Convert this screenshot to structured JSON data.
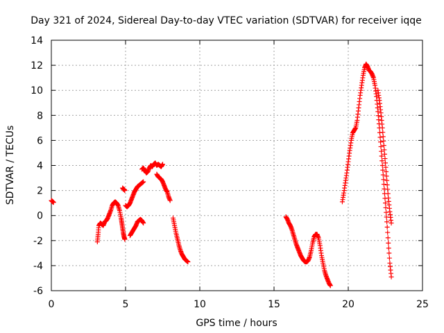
{
  "chart_data": {
    "type": "scatter",
    "title": "Day 321 of 2024, Sidereal Day-to-day VTEC variation (SDTVAR) for receiver iqqe",
    "xlabel": "GPS time / hours",
    "ylabel": "SDTVAR / TECUs",
    "xlim": [
      0,
      25
    ],
    "ylim": [
      -6,
      14
    ],
    "xticks": [
      0,
      5,
      10,
      15,
      20,
      25
    ],
    "yticks": [
      -6,
      -4,
      -2,
      0,
      2,
      4,
      6,
      8,
      10,
      12,
      14
    ],
    "xtick_labels": [
      "0",
      "5",
      "10",
      "15",
      "20",
      "25"
    ],
    "ytick_labels": [
      "-6",
      "-4",
      "-2",
      "0",
      "2",
      "4",
      "6",
      "8",
      "10",
      "12",
      "14"
    ],
    "grid": true,
    "marker": "+",
    "color": "#ff0000",
    "series": [
      {
        "name": "seg1",
        "x": [
          0.0,
          0.05,
          0.1,
          0.15
        ],
        "y": [
          1.2,
          1.15,
          1.1,
          1.05
        ]
      },
      {
        "name": "seg2",
        "x": [
          3.1,
          3.15,
          3.2,
          3.3,
          3.4,
          3.5,
          3.6,
          3.7,
          3.8,
          3.9,
          4.0,
          4.1,
          4.2,
          4.3,
          4.4,
          4.5,
          4.6,
          4.7,
          4.75,
          4.8,
          4.85,
          4.9,
          4.95
        ],
        "y": [
          -2.1,
          -1.5,
          -0.8,
          -0.6,
          -0.7,
          -0.8,
          -0.5,
          -0.4,
          -0.2,
          0.1,
          0.4,
          0.8,
          1.0,
          1.1,
          1.0,
          0.8,
          0.4,
          -0.2,
          -0.6,
          -1.0,
          -1.4,
          -1.7,
          -1.9
        ]
      },
      {
        "name": "seg3",
        "x": [
          4.8,
          4.85,
          4.9,
          4.95
        ],
        "y": [
          2.2,
          2.1,
          2.1,
          2.0
        ]
      },
      {
        "name": "seg4",
        "x": [
          5.0,
          5.1,
          5.2,
          5.3,
          5.4,
          5.5,
          5.6,
          5.7,
          5.8,
          5.9,
          6.0,
          6.1,
          6.2
        ],
        "y": [
          0.8,
          0.7,
          0.8,
          1.0,
          1.3,
          1.6,
          1.9,
          2.1,
          2.3,
          2.4,
          2.5,
          2.6,
          2.7
        ]
      },
      {
        "name": "seg5",
        "x": [
          5.3,
          5.4,
          5.5,
          5.6,
          5.7,
          5.8,
          5.9,
          6.0,
          6.1,
          6.2
        ],
        "y": [
          -1.6,
          -1.4,
          -1.2,
          -1.0,
          -0.8,
          -0.5,
          -0.4,
          -0.3,
          -0.4,
          -0.6
        ]
      },
      {
        "name": "seg6",
        "x": [
          6.1,
          6.2,
          6.3,
          6.4,
          6.5,
          6.6,
          6.7,
          6.8,
          6.9,
          7.0,
          7.1,
          7.2,
          7.3,
          7.4,
          7.5
        ],
        "y": [
          3.7,
          3.8,
          3.6,
          3.4,
          3.5,
          3.8,
          4.0,
          3.9,
          4.1,
          4.2,
          4.0,
          4.1,
          4.0,
          3.9,
          4.1
        ]
      },
      {
        "name": "seg7",
        "x": [
          7.1,
          7.2,
          7.3,
          7.4,
          7.5,
          7.6,
          7.7,
          7.8,
          7.9,
          8.0
        ],
        "y": [
          3.3,
          3.1,
          3.0,
          2.9,
          2.7,
          2.4,
          2.1,
          1.9,
          1.5,
          1.2
        ]
      },
      {
        "name": "seg8",
        "x": [
          8.2,
          8.3,
          8.4,
          8.5,
          8.6,
          8.7,
          8.8,
          8.9,
          9.0,
          9.1,
          9.2
        ],
        "y": [
          -0.2,
          -0.8,
          -1.4,
          -1.9,
          -2.4,
          -2.8,
          -3.1,
          -3.3,
          -3.5,
          -3.6,
          -3.7
        ]
      },
      {
        "name": "seg9",
        "x": [
          15.8,
          15.9,
          16.0,
          16.1,
          16.2,
          16.3,
          16.4,
          16.5,
          16.6,
          16.7,
          16.8,
          16.9,
          17.0,
          17.1,
          17.2,
          17.3,
          17.4,
          17.5,
          17.6,
          17.7,
          17.8,
          17.9,
          18.0,
          18.1,
          18.2,
          18.3,
          18.4,
          18.5,
          18.6,
          18.7,
          18.8
        ],
        "y": [
          -0.1,
          -0.3,
          -0.6,
          -0.8,
          -1.1,
          -1.5,
          -1.9,
          -2.3,
          -2.6,
          -2.9,
          -3.2,
          -3.4,
          -3.6,
          -3.7,
          -3.7,
          -3.6,
          -3.3,
          -2.8,
          -2.2,
          -1.7,
          -1.5,
          -1.5,
          -1.8,
          -2.4,
          -3.2,
          -3.8,
          -4.4,
          -4.8,
          -5.1,
          -5.4,
          -5.6
        ]
      },
      {
        "name": "seg10",
        "x": [
          19.6,
          19.7,
          19.8,
          19.9,
          20.0,
          20.1,
          20.2,
          20.3,
          20.4,
          20.5,
          20.6,
          20.7,
          20.8,
          20.9,
          21.0,
          21.1,
          21.2,
          21.3,
          21.4,
          21.5,
          21.6,
          21.7,
          21.8,
          21.9,
          22.0,
          22.1,
          22.2,
          22.3,
          22.4,
          22.5,
          22.6,
          22.7,
          22.8,
          22.9
        ],
        "y": [
          1.1,
          1.8,
          2.6,
          3.4,
          4.3,
          5.2,
          6.0,
          6.6,
          6.8,
          7.0,
          7.6,
          8.6,
          9.6,
          10.4,
          11.2,
          11.8,
          12.1,
          11.9,
          11.6,
          11.5,
          11.3,
          11.0,
          10.4,
          9.5,
          8.3,
          7.0,
          5.5,
          4.0,
          2.5,
          1.0,
          -0.5,
          -2.2,
          -3.8,
          -4.9
        ]
      },
      {
        "name": "seg11",
        "x": [
          22.0,
          22.1,
          22.2,
          22.3,
          22.4,
          22.5,
          22.6,
          22.7,
          22.8,
          22.9
        ],
        "y": [
          10.0,
          9.2,
          8.2,
          7.0,
          5.6,
          4.2,
          2.8,
          1.4,
          0.3,
          -0.6
        ]
      }
    ]
  }
}
